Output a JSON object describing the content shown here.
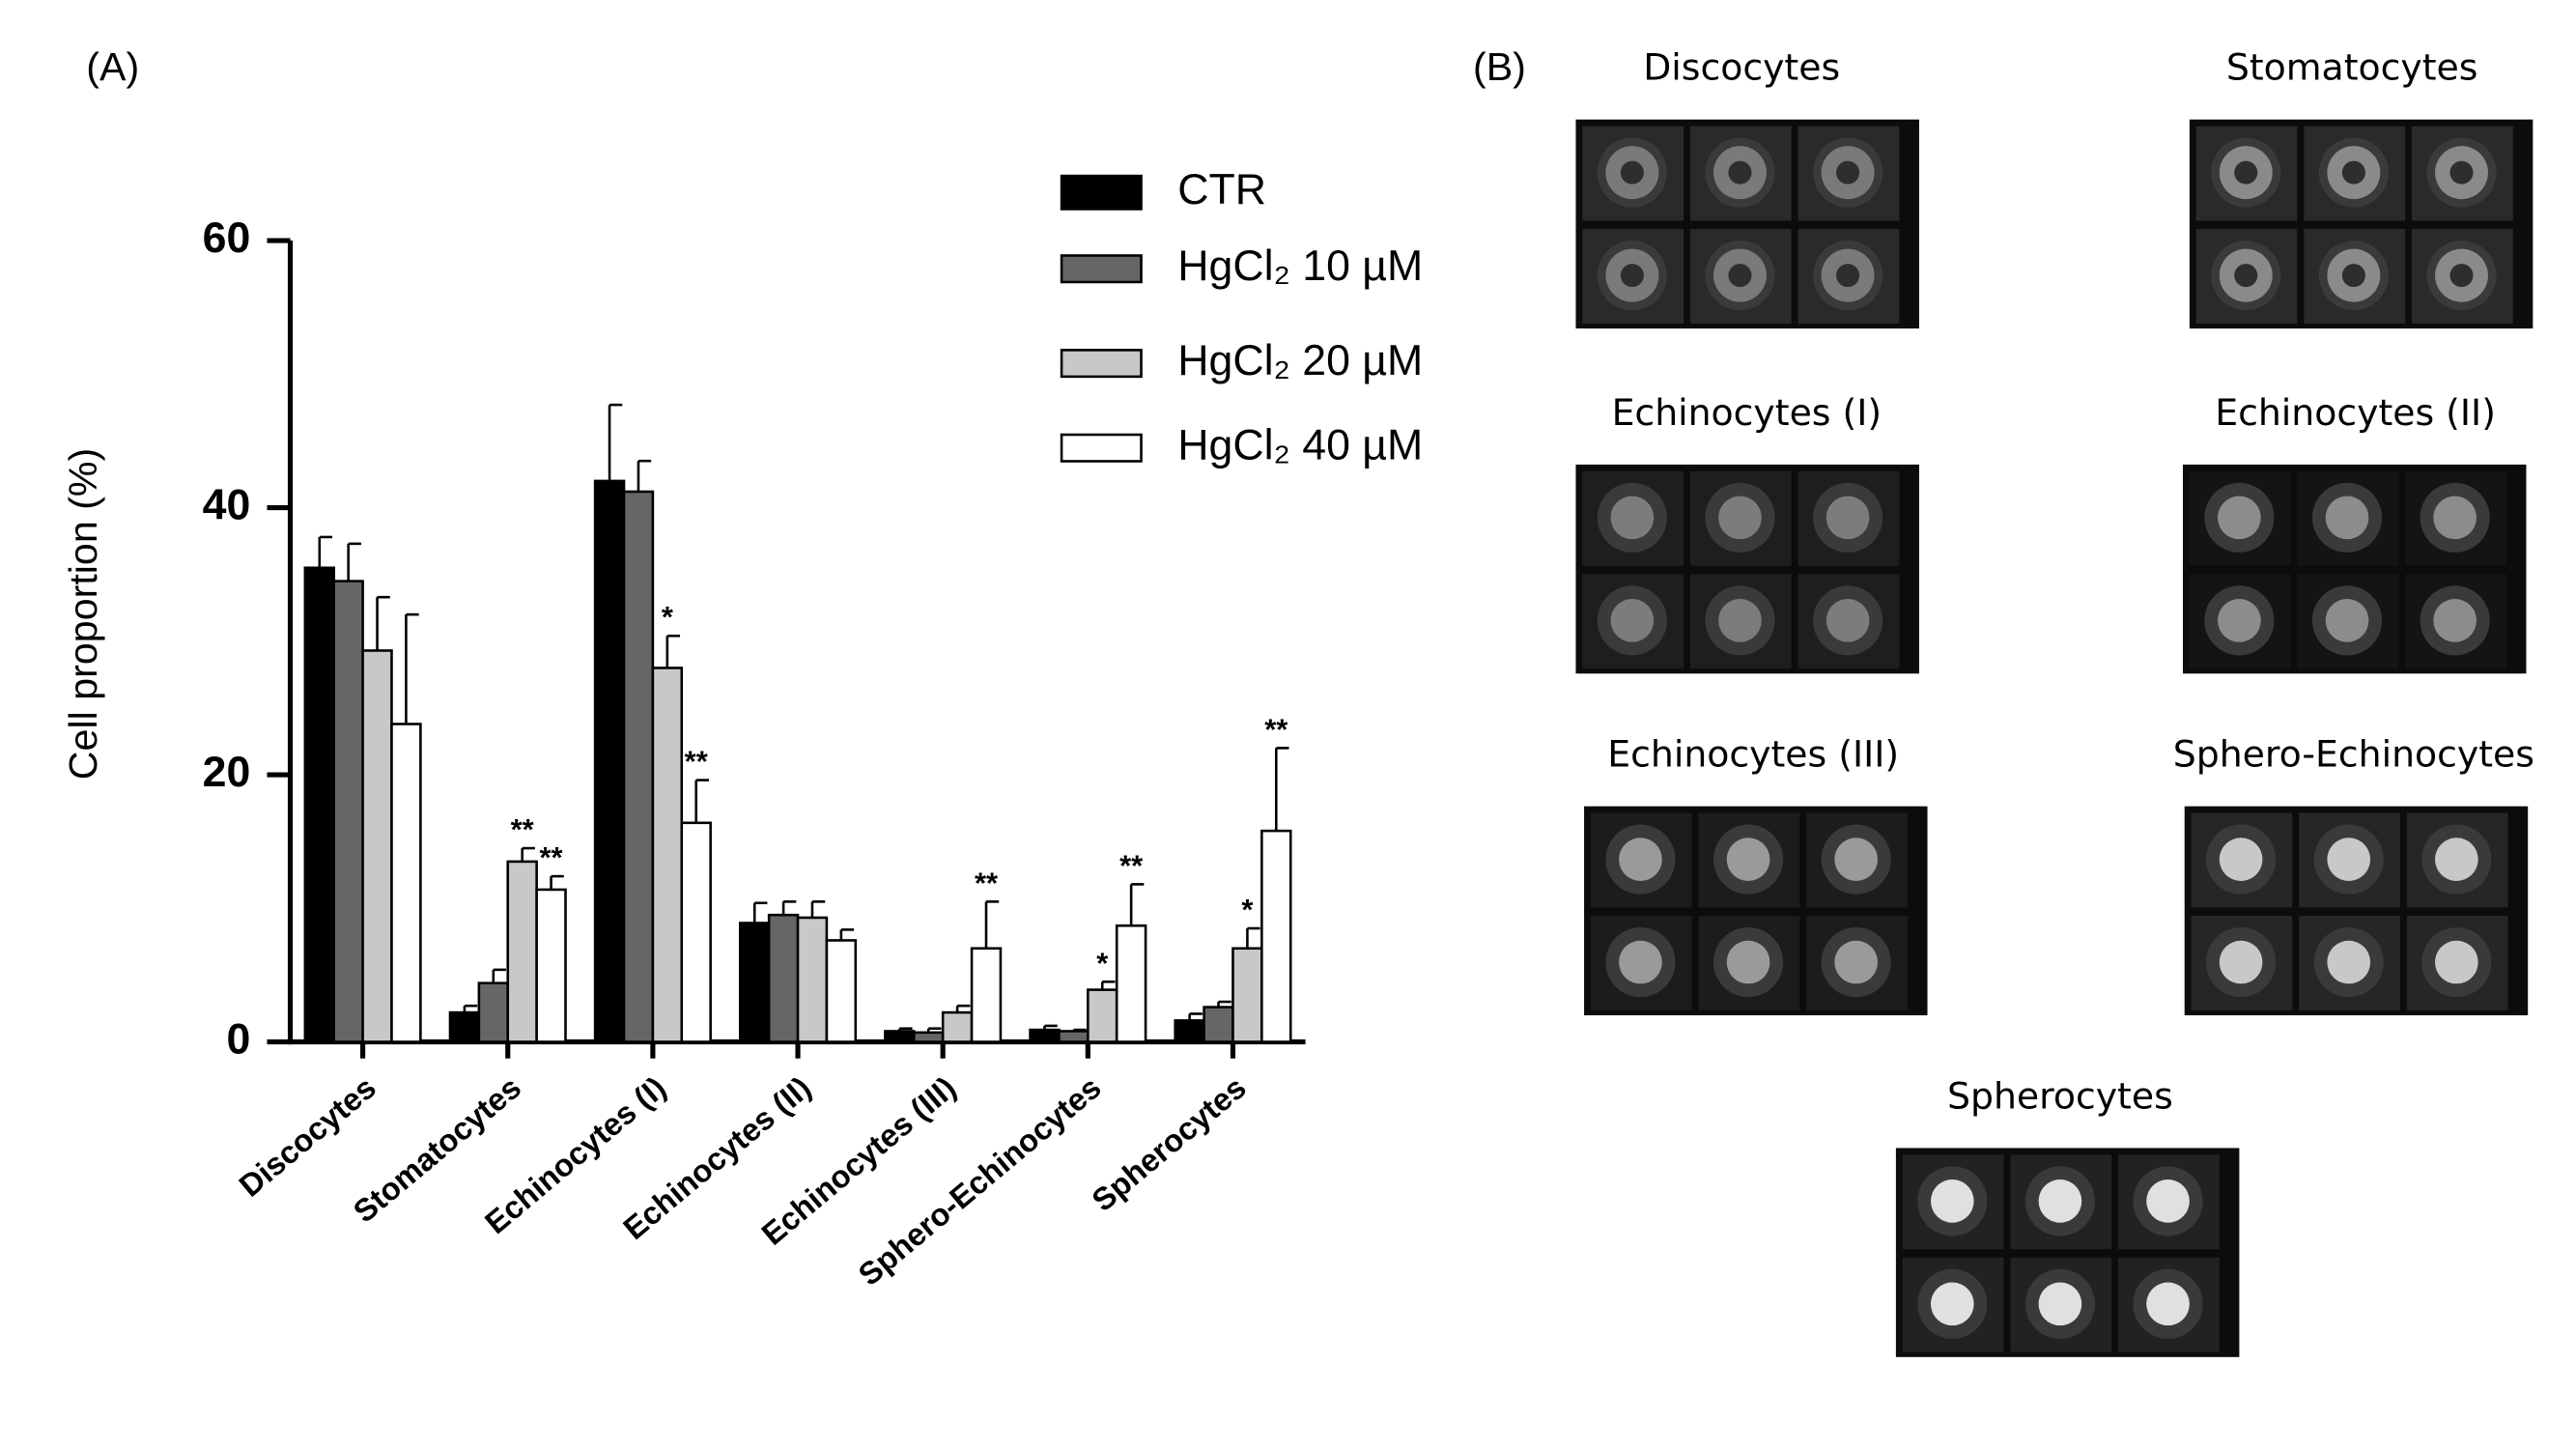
{
  "chart_data": {
    "type": "bar",
    "panel_label": "(A)",
    "ylabel": "Cell proportion (%)",
    "categories": [
      "Discocytes",
      "Stomatocytes",
      "Echinocytes (I)",
      "Echinocytes (II)",
      "Echinocytes (III)",
      "Sphero-Echinocytes",
      "Spherocytes"
    ],
    "series": [
      {
        "name": "CTR",
        "color": "#000000",
        "values": [
          35.5,
          2.2,
          42,
          8.9,
          0.8,
          0.9,
          1.6
        ],
        "errors": [
          2.3,
          0.5,
          5.7,
          1.5,
          0.2,
          0.3,
          0.5
        ],
        "annotations": [
          null,
          null,
          null,
          null,
          null,
          null,
          null
        ]
      },
      {
        "name": "HgCl₂ 10 µM",
        "color": "#666666",
        "values": [
          34.5,
          4.4,
          41.2,
          9.5,
          0.7,
          0.8,
          2.6
        ],
        "errors": [
          2.8,
          1.0,
          2.3,
          1.0,
          0.3,
          0.1,
          0.4
        ],
        "annotations": [
          null,
          null,
          null,
          null,
          null,
          null,
          null
        ]
      },
      {
        "name": "HgCl₂ 20 µM",
        "color": "#c8c8c8",
        "values": [
          29.3,
          13.5,
          28,
          9.3,
          2.2,
          3.9,
          7.0
        ],
        "errors": [
          4.0,
          1.0,
          2.4,
          1.2,
          0.5,
          0.6,
          1.5
        ],
        "annotations": [
          null,
          "**",
          "*",
          null,
          null,
          "*",
          "*"
        ]
      },
      {
        "name": "HgCl₂ 40 µM",
        "color": "#ffffff",
        "values": [
          23.8,
          11.4,
          16.4,
          7.6,
          7.0,
          8.7,
          15.8
        ],
        "errors": [
          8.2,
          1.0,
          3.2,
          0.8,
          3.5,
          3.1,
          6.2
        ],
        "annotations": [
          null,
          "**",
          "**",
          null,
          "**",
          "**",
          "**"
        ]
      }
    ],
    "ylim": [
      0,
      60
    ],
    "yticks": [
      0,
      20,
      40,
      60
    ],
    "grid": false,
    "legend": "top-right"
  },
  "panel_b": {
    "label": "(B)",
    "images": [
      {
        "title": "Discocytes"
      },
      {
        "title": "Stomatocytes"
      },
      {
        "title": "Echinocytes (I)"
      },
      {
        "title": "Echinocytes (II)"
      },
      {
        "title": "Echinocytes (III)"
      },
      {
        "title": "Sphero-Echinocytes"
      },
      {
        "title": "Spherocytes"
      }
    ]
  }
}
